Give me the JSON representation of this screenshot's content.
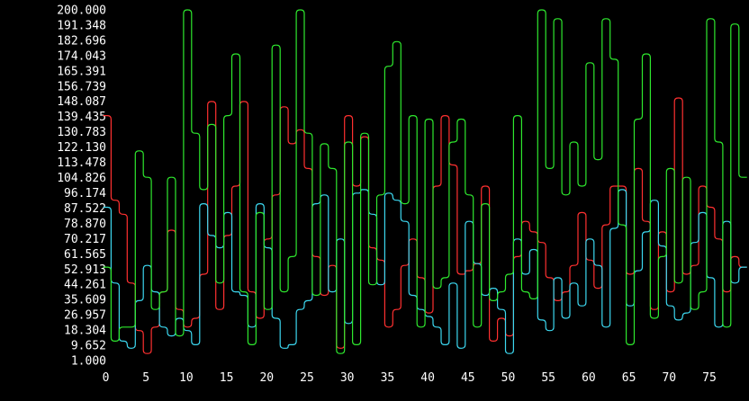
{
  "chart_data": {
    "type": "line",
    "title": "",
    "xlabel": "",
    "ylabel": "",
    "background": "#000000",
    "xlim": [
      0,
      79
    ],
    "ylim": [
      1.0,
      200.0
    ],
    "grid": false,
    "legend": "none",
    "x_ticks": [
      "0",
      "5",
      "10",
      "15",
      "20",
      "25",
      "30",
      "35",
      "40",
      "45",
      "50",
      "55",
      "60",
      "65",
      "70",
      "75"
    ],
    "y_ticks": [
      "200.000",
      "191.348",
      "182.696",
      "174.043",
      "165.391",
      "156.739",
      "148.087",
      "139.435",
      "130.783",
      "122.130",
      "113.478",
      "104.826",
      "96.174",
      "87.522",
      "78.870",
      "70.217",
      "61.565",
      "52.913",
      "44.261",
      "35.609",
      "26.957",
      "18.304",
      "9.652",
      "1.000"
    ],
    "series": [
      {
        "color": "#ff3030",
        "values": [
          140,
          92,
          84,
          45,
          18,
          5,
          20,
          40,
          75,
          30,
          20,
          25,
          50,
          148,
          30,
          72,
          100,
          148,
          40,
          25,
          70,
          95,
          145,
          124,
          132,
          110,
          60,
          38,
          55,
          8,
          140,
          100,
          128,
          65,
          58,
          20,
          30,
          55,
          70,
          48,
          28,
          100,
          140,
          112,
          50,
          52,
          56,
          100,
          12,
          25,
          15,
          60,
          80,
          74,
          68,
          48,
          35,
          40,
          55,
          85,
          58,
          42,
          78,
          100,
          100,
          50,
          110,
          80,
          30,
          74,
          40,
          150,
          50,
          55,
          100,
          88,
          70,
          40,
          60,
          54
        ]
      },
      {
        "color": "#3cd8f0",
        "values": [
          88,
          45,
          12,
          8,
          35,
          55,
          40,
          20,
          15,
          25,
          18,
          10,
          90,
          72,
          65,
          85,
          40,
          38,
          20,
          90,
          65,
          25,
          8,
          10,
          30,
          35,
          90,
          95,
          40,
          70,
          22,
          96,
          98,
          84,
          44,
          96,
          92,
          80,
          38,
          30,
          26,
          20,
          10,
          45,
          8,
          80,
          56,
          38,
          42,
          30,
          5,
          70,
          50,
          64,
          24,
          18,
          48,
          25,
          45,
          32,
          70,
          55,
          20,
          76,
          98,
          32,
          52,
          74,
          92,
          66,
          32,
          24,
          28,
          68,
          85,
          48,
          20,
          80,
          45,
          54
        ]
      },
      {
        "color": "#2ee82e",
        "values": [
          54,
          12,
          20,
          20,
          120,
          105,
          30,
          40,
          105,
          15,
          200,
          130,
          98,
          135,
          45,
          140,
          175,
          40,
          10,
          85,
          30,
          180,
          40,
          60,
          200,
          130,
          38,
          124,
          110,
          5,
          125,
          10,
          130,
          44,
          95,
          168,
          182,
          90,
          140,
          20,
          138,
          42,
          48,
          125,
          138,
          95,
          20,
          90,
          35,
          40,
          50,
          140,
          40,
          36,
          200,
          110,
          195,
          95,
          125,
          100,
          170,
          115,
          195,
          172,
          78,
          10,
          138,
          175,
          25,
          60,
          110,
          45,
          105,
          30,
          40,
          195,
          125,
          20,
          192,
          105
        ]
      }
    ]
  }
}
